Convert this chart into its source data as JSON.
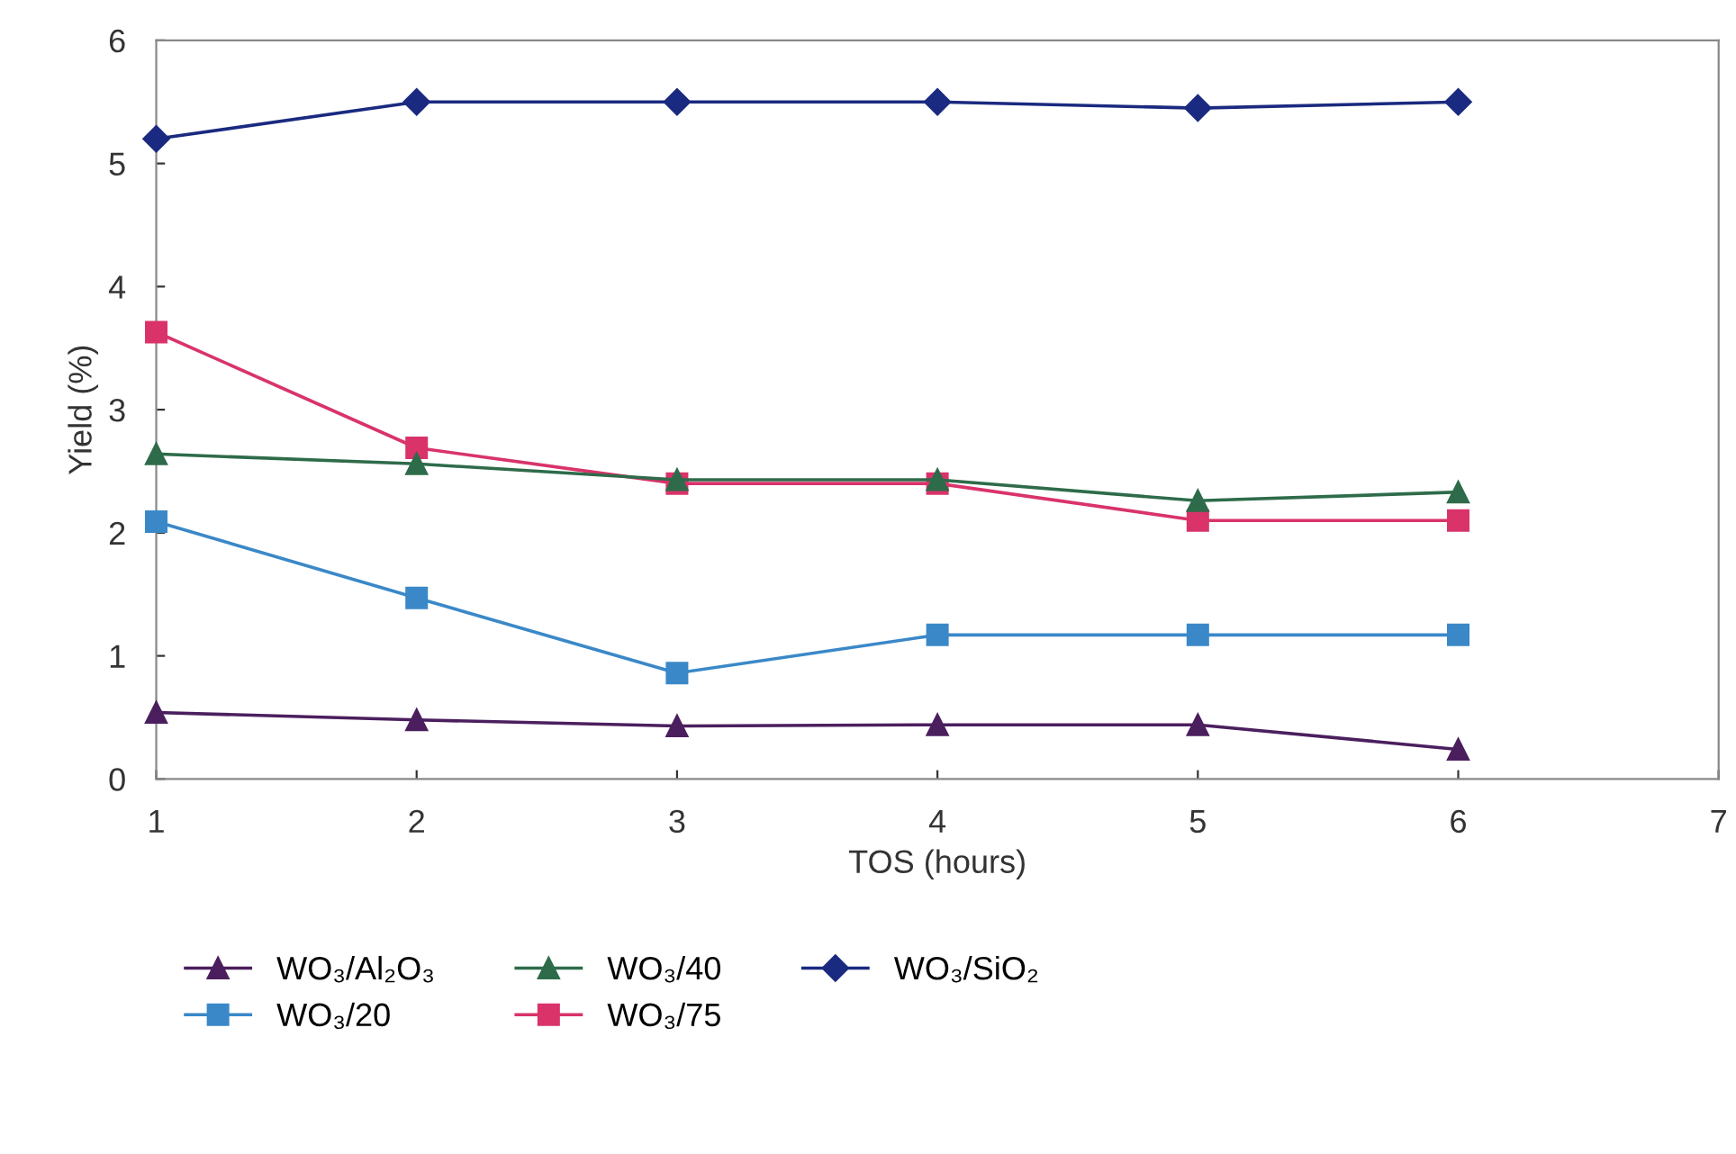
{
  "chart_data": {
    "type": "line",
    "xlabel": "TOS (hours)",
    "ylabel": "Yield (%)",
    "x": [
      1,
      2,
      3,
      4,
      5,
      6
    ],
    "xlim": [
      1,
      7
    ],
    "xticks": [
      1,
      2,
      3,
      4,
      5,
      6,
      7
    ],
    "ylim": [
      0,
      6
    ],
    "yticks": [
      0,
      1,
      2,
      3,
      4,
      5,
      6
    ],
    "grid": false,
    "legend": "bottom",
    "series": [
      {
        "name": "WO₃/Al₂O₃",
        "color": "#4b1f5e",
        "marker": "triangle",
        "values": [
          0.54,
          0.48,
          0.43,
          0.44,
          0.44,
          0.24
        ]
      },
      {
        "name": "WO₃/20",
        "color": "#3a88c8",
        "marker": "square",
        "values": [
          2.09,
          1.47,
          0.86,
          1.17,
          1.17,
          1.17
        ]
      },
      {
        "name": "WO₃/40",
        "color": "#2e6b4a",
        "marker": "triangle",
        "values": [
          2.64,
          2.56,
          2.43,
          2.43,
          2.26,
          2.33
        ]
      },
      {
        "name": "WO₃/75",
        "color": "#d9336a",
        "marker": "square",
        "values": [
          3.63,
          2.69,
          2.4,
          2.4,
          2.1,
          2.1
        ]
      },
      {
        "name": "WO₃/SiO₂",
        "color": "#1a2a80",
        "marker": "diamond",
        "values": [
          5.2,
          5.5,
          5.5,
          5.5,
          5.45,
          5.5
        ]
      }
    ]
  }
}
